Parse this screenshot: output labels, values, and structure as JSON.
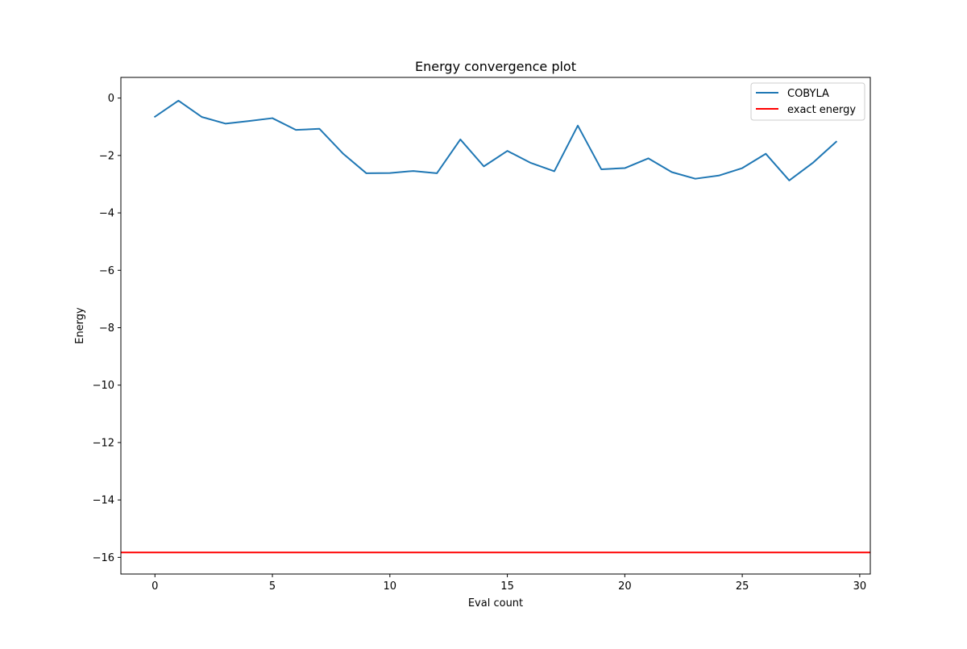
{
  "chart_data": {
    "type": "line",
    "title": "Energy convergence plot",
    "xlabel": "Eval count",
    "ylabel": "Energy",
    "xlim": [
      -1.45,
      30.45
    ],
    "ylim": [
      -16.58,
      0.72
    ],
    "xticks": [
      0,
      5,
      10,
      15,
      20,
      25,
      30
    ],
    "yticks": [
      0,
      -2,
      -4,
      -6,
      -8,
      -10,
      -12,
      -14,
      -16
    ],
    "xtick_labels": [
      "0",
      "5",
      "10",
      "15",
      "20",
      "25",
      "30"
    ],
    "ytick_labels": [
      "0",
      "−2",
      "−4",
      "−6",
      "−8",
      "−10",
      "−12",
      "−14",
      "−16"
    ],
    "grid": false,
    "legend_position": "top-right",
    "series": [
      {
        "name": "COBYLA",
        "color": "#1f77b4",
        "x": [
          0,
          1,
          2,
          3,
          4,
          5,
          6,
          7,
          8,
          9,
          10,
          11,
          12,
          13,
          14,
          15,
          16,
          17,
          18,
          19,
          20,
          21,
          22,
          23,
          24,
          25,
          26,
          27,
          28,
          29
        ],
        "y": [
          -0.65,
          -0.09,
          -0.66,
          -0.89,
          -0.8,
          -0.7,
          -1.11,
          -1.07,
          -1.93,
          -2.62,
          -2.61,
          -2.54,
          -2.62,
          -1.44,
          -2.38,
          -1.84,
          -2.26,
          -2.55,
          -0.96,
          -2.48,
          -2.44,
          -2.1,
          -2.58,
          -2.81,
          -2.7,
          -2.44,
          -1.94,
          -2.87,
          -2.26,
          -1.52
        ]
      }
    ],
    "hlines": [
      {
        "name": "exact energy",
        "color": "#ff0000",
        "y": -15.83
      }
    ]
  }
}
